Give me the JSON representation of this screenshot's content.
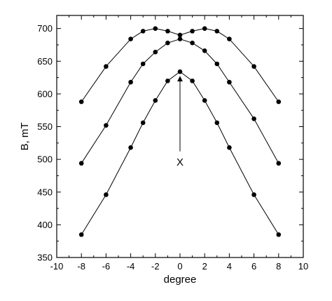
{
  "chart_data": {
    "type": "scatter",
    "title": "",
    "xlabel": "degree",
    "ylabel": "B, mT",
    "xlim": [
      -10,
      10
    ],
    "ylim": [
      350,
      720
    ],
    "x_ticks": [
      "-10",
      "-8",
      "-6",
      "-4",
      "-2",
      "0",
      "2",
      "4",
      "6",
      "8",
      "10"
    ],
    "y_ticks": [
      "350",
      "400",
      "450",
      "500",
      "550",
      "600",
      "650",
      "700"
    ],
    "grid": false,
    "legend": "none",
    "marker": "filled-circle",
    "line_style": "solid, connected",
    "color": "#000000",
    "series": [
      {
        "x": [
          -8,
          -6,
          -4,
          -3,
          -2,
          -1,
          0,
          1,
          2,
          3,
          4,
          6,
          8
        ],
        "y": [
          588,
          642,
          684,
          696,
          700,
          696,
          690,
          696,
          700,
          696,
          684,
          642,
          588
        ]
      },
      {
        "x": [
          -8,
          -6,
          -4,
          -3,
          -2,
          -1,
          0,
          1,
          2,
          3,
          4,
          6,
          8
        ],
        "y": [
          494,
          552,
          618,
          646,
          664,
          678,
          684,
          678,
          666,
          646,
          618,
          562,
          494
        ]
      },
      {
        "x": [
          -8,
          -6,
          -4,
          -3,
          -2,
          -1,
          0,
          1,
          2,
          3,
          4,
          6,
          8
        ],
        "y": [
          385,
          446,
          518,
          556,
          590,
          620,
          634,
          620,
          590,
          556,
          518,
          446,
          385
        ]
      }
    ],
    "annotations": [
      {
        "text": "X",
        "x": 0,
        "y": 495,
        "arrow_to": [
          0,
          634
        ]
      }
    ]
  }
}
